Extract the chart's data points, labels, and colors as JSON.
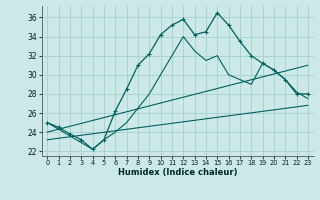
{
  "xlabel": "Humidex (Indice chaleur)",
  "xlim": [
    -0.5,
    23.5
  ],
  "ylim": [
    21.5,
    37.2
  ],
  "yticks": [
    22,
    24,
    26,
    28,
    30,
    32,
    34,
    36
  ],
  "xticks": [
    0,
    1,
    2,
    3,
    4,
    5,
    6,
    7,
    8,
    9,
    10,
    11,
    12,
    13,
    14,
    15,
    16,
    17,
    18,
    19,
    20,
    21,
    22,
    23
  ],
  "bg_color": "#cce9e7",
  "grid_color": "#a8d4d0",
  "line_color": "#006060",
  "main_line": {
    "x": [
      0,
      1,
      2,
      3,
      4,
      5,
      6,
      7,
      8,
      9,
      10,
      11,
      12,
      13,
      14,
      15,
      16,
      17,
      18,
      19,
      20,
      21,
      22,
      23
    ],
    "y": [
      25.0,
      24.5,
      23.8,
      23.2,
      22.2,
      23.2,
      26.2,
      28.5,
      31.0,
      32.2,
      34.2,
      35.2,
      35.8,
      34.2,
      34.5,
      36.5,
      35.2,
      33.5,
      32.0,
      31.2,
      30.5,
      29.5,
      28.0,
      28.0
    ]
  },
  "extra_lines": [
    {
      "x": [
        0,
        4,
        5,
        6,
        7,
        8,
        9,
        10,
        11,
        12,
        13,
        14,
        15,
        16,
        17,
        18,
        19,
        20,
        21,
        22,
        23
      ],
      "y": [
        25.0,
        22.2,
        23.2,
        24.0,
        25.0,
        26.5,
        28.0,
        30.0,
        32.0,
        34.0,
        32.5,
        31.5,
        32.0,
        30.0,
        29.5,
        29.0,
        31.2,
        30.5,
        29.5,
        28.2,
        27.5
      ]
    },
    {
      "x": [
        0,
        23
      ],
      "y": [
        24.0,
        31.0
      ]
    },
    {
      "x": [
        0,
        23
      ],
      "y": [
        23.2,
        26.8
      ]
    }
  ]
}
